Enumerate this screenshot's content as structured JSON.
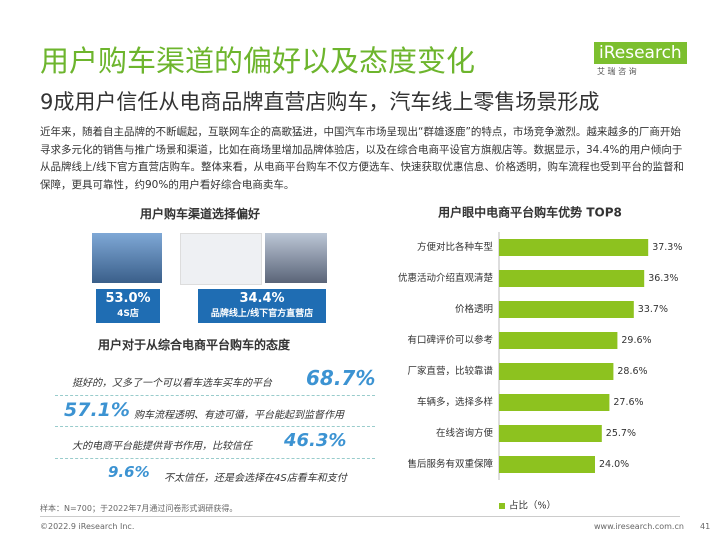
{
  "header": {
    "title": "用户购车渠道的偏好以及态度变化",
    "subtitle": "9成用户信任从电商品牌直营店购车，汽车线上零售场景形成",
    "logo": "iResearch",
    "logo_sub": "艾 瑞 咨 询"
  },
  "intro": "近年来，随着自主品牌的不断崛起，互联网车企的高歌猛进，中国汽车市场呈现出“群雄逐鹿”的特点，市场竞争激烈。越来越多的厂商开始寻求多元化的销售与推广场景和渠道，比如在商场里增加品牌体验店，以及在综合电商平设官方旗舰店等。数据显示，34.4%的用户倾向于从品牌线上/线下官方直营店购车。整体来看，从电商平台购车不仅方便选车、快速获取优惠信息、价格透明，购车流程也受到平台的监督和保障，更具可靠性，约90%的用户看好综合电商卖车。",
  "channel": {
    "title": "用户购车渠道选择偏好",
    "items": [
      {
        "percent": "53.0%",
        "label": "4S店"
      },
      {
        "percent": "34.4%",
        "label": "品牌线上/线下官方直营店"
      }
    ]
  },
  "attitude": {
    "title": "用户对于从综合电商平台购车的态度",
    "items": [
      {
        "percent": "68.7%",
        "text": "挺好的，又多了一个可以看车选车买车的平台"
      },
      {
        "percent": "57.1%",
        "text": "购车流程透明、有迹可循，平台能起到监督作用"
      },
      {
        "percent": "46.3%",
        "text": "大的电商平台能提供背书作用，比较信任"
      },
      {
        "percent": "9.6%",
        "text": "不太信任，还是会选择在4S店看车和支付"
      }
    ]
  },
  "chart_data": {
    "type": "bar",
    "orientation": "horizontal",
    "title": "用户眼中电商平台购车优势 TOP8",
    "categories": [
      "方便对比各种车型",
      "优惠活动介绍直观清楚",
      "价格透明",
      "有口碑评价可以参考",
      "厂家直营，比较靠谱",
      "车辆多，选择多样",
      "在线咨询方便",
      "售后服务有双重保障"
    ],
    "series": [
      {
        "name": "占比（%）",
        "color": "#8dc21f",
        "values": [
          37.3,
          36.3,
          33.7,
          29.6,
          28.6,
          27.6,
          25.7,
          24.0
        ],
        "value_labels": [
          "37.3%",
          "36.3%",
          "33.7%",
          "29.6%",
          "28.6%",
          "27.6%",
          "25.7%",
          "24.0%"
        ]
      }
    ],
    "xlim": [
      0,
      40
    ],
    "legend": "bottom"
  },
  "footer": {
    "note": "样本：N=700；于2022年7月通过问卷形式调研获得。",
    "copyright": "©2022.9 iResearch Inc.",
    "url": "www.iresearch.com.cn",
    "page": "41"
  }
}
